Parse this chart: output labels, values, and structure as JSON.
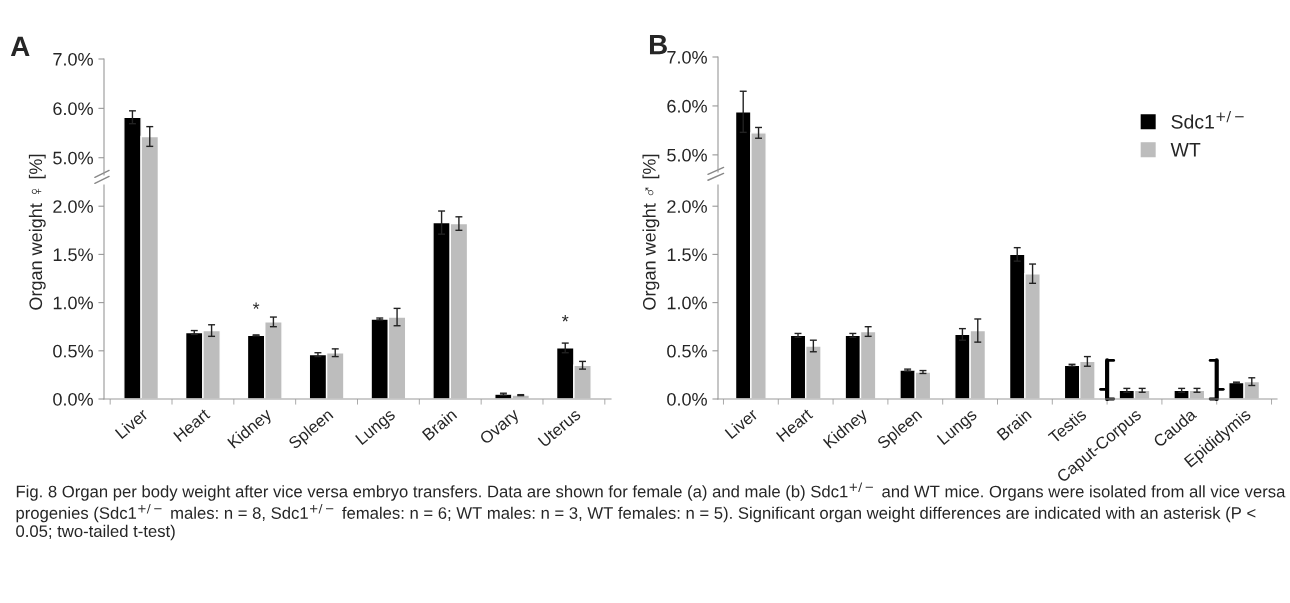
{
  "chart_data": [
    {
      "type": "bar",
      "title": "A",
      "categories": [
        "Liver",
        "Heart",
        "Kidney",
        "Spleen",
        "Lungs",
        "Brain",
        "Ovary",
        "Uterus"
      ],
      "tick_labels": "y",
      "ylim": [
        4.65,
        7.0
      ],
      "yticks": [
        {
          "value": 5.0,
          "label": "5.0%"
        },
        {
          "value": 6.0,
          "label": "6.0%"
        },
        {
          "value": 7.0,
          "label": "7.0%"
        }
      ],
      "grid": false,
      "series": [
        {
          "color": "#000000",
          "values": [
            5.82,
            null,
            null,
            null,
            null,
            null,
            null,
            null
          ],
          "errors": [
            0.13,
            null,
            null,
            null,
            null,
            null,
            null,
            null
          ]
        },
        {
          "color": "#bdbdbd",
          "values": [
            5.43,
            null,
            null,
            null,
            null,
            null,
            null,
            null
          ],
          "errors": [
            0.2,
            null,
            null,
            null,
            null,
            null,
            null,
            null
          ]
        }
      ]
    },
    {
      "type": "bar",
      "ylabel": "Organ weight ♀ [%]",
      "categories": [
        "Liver",
        "Heart",
        "Kidney",
        "Spleen",
        "Lungs",
        "Brain",
        "Ovary",
        "Uterus"
      ],
      "ylim": [
        0,
        2.22
      ],
      "yticks": [
        {
          "value": 0.0,
          "label": "0.0%"
        },
        {
          "value": 0.5,
          "label": "0.5%"
        },
        {
          "value": 1.0,
          "label": "1.0%"
        },
        {
          "value": 1.5,
          "label": "1.5%"
        },
        {
          "value": 2.0,
          "label": "2.0%"
        }
      ],
      "grid": false,
      "annotations": [
        {
          "text": "*",
          "x": "Kidney",
          "y": 0.66
        },
        {
          "text": "*",
          "x": "Uterus",
          "y": 0.53
        }
      ],
      "series": [
        {
          "color": "#000000",
          "values": [
            null,
            0.69,
            0.66,
            0.46,
            0.83,
            1.83,
            0.05,
            0.53
          ],
          "errors": [
            null,
            0.02,
            0.005,
            0.02,
            0.01,
            0.12,
            0.01,
            0.05
          ]
        },
        {
          "color": "#bdbdbd",
          "values": [
            null,
            0.71,
            0.8,
            0.48,
            0.85,
            1.82,
            0.04,
            0.35
          ],
          "errors": [
            null,
            0.06,
            0.05,
            0.04,
            0.09,
            0.07,
            0.005,
            0.04
          ]
        }
      ]
    },
    {
      "type": "bar",
      "title": "B",
      "categories": [
        "Liver",
        "Heart",
        "Kidney",
        "Spleen",
        "Lungs",
        "Brain",
        "Testis",
        "Caput-Corpus",
        "Cauda",
        "Epididymis"
      ],
      "tick_labels": "y",
      "ylim": [
        4.65,
        7.0
      ],
      "yticks": [
        {
          "value": 5.0,
          "label": "5.0%"
        },
        {
          "value": 6.0,
          "label": "6.0%"
        },
        {
          "value": 7.0,
          "label": "7.0%"
        }
      ],
      "grid": false,
      "legend": "right",
      "series": [
        {
          "name": "Sdc1$^{+/−}$",
          "color": "#000000",
          "values": [
            5.88,
            null,
            null,
            null,
            null,
            null,
            null,
            null,
            null,
            null
          ],
          "errors": [
            0.42,
            null,
            null,
            null,
            null,
            null,
            null,
            null,
            null,
            null
          ]
        },
        {
          "name": "WT",
          "color": "#bdbdbd",
          "values": [
            5.45,
            null,
            null,
            null,
            null,
            null,
            null,
            null,
            null,
            null
          ],
          "errors": [
            0.11,
            null,
            null,
            null,
            null,
            null,
            null,
            null,
            null,
            null
          ]
        }
      ]
    },
    {
      "type": "bar",
      "ylabel": "Organ weight ♂ [%]",
      "categories": [
        "Liver",
        "Heart",
        "Kidney",
        "Spleen",
        "Lungs",
        "Brain",
        "Testis",
        "Caput-Corpus",
        "Cauda",
        "Epididymis"
      ],
      "ylim": [
        0,
        2.22
      ],
      "yticks": [
        {
          "value": 0.0,
          "label": "0.0%"
        },
        {
          "value": 0.5,
          "label": "0.5%"
        },
        {
          "value": 1.0,
          "label": "1.0%"
        },
        {
          "value": 1.5,
          "label": "1.5%"
        },
        {
          "value": 2.0,
          "label": "2.0%"
        }
      ],
      "grid": false,
      "annotations": [
        "Fig. 8 Organ per body weight after vice versa embryo transfers. Data are shown for female (a) and male (b) Sdc1$^{+/−}$ and WT mice. Organs were isolated from all vice versa progenies (Sdc1$^{+/−}$ males: n = 8, Sdc1$^{+/−}$ females: n = 6; WT males: n = 3, WT females: n = 5). Significant organ weight differences are indicated with an asterisk (P < 0.05; two-tailed t-test)"
      ],
      "series": [
        {
          "color": "#000000",
          "values": [
            null,
            0.66,
            0.66,
            0.3,
            0.67,
            1.5,
            0.35,
            0.09,
            0.09,
            0.17
          ],
          "errors": [
            null,
            0.02,
            0.02,
            0.01,
            0.06,
            0.07,
            0.01,
            0.02,
            0.02,
            0.005
          ]
        },
        {
          "color": "#bdbdbd",
          "values": [
            null,
            0.55,
            0.7,
            0.28,
            0.71,
            1.3,
            0.39,
            0.09,
            0.09,
            0.18
          ],
          "errors": [
            null,
            0.06,
            0.05,
            0.015,
            0.12,
            0.1,
            0.05,
            0.02,
            0.02,
            0.04
          ]
        }
      ]
    }
  ]
}
